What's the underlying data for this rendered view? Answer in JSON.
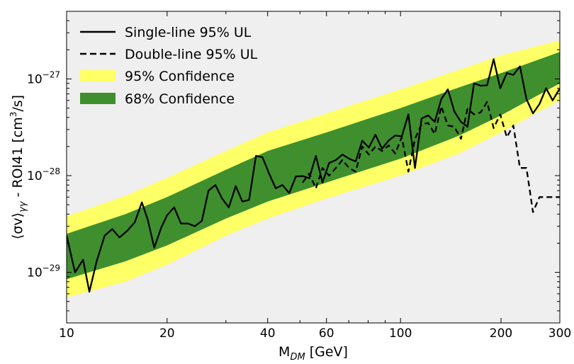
{
  "chart_data": {
    "type": "line",
    "xscale": "log",
    "yscale": "log",
    "xlim": [
      10,
      300
    ],
    "ylim": [
      3e-30,
      5e-27
    ],
    "xlabel_main": "M",
    "xlabel_sub": "DM",
    "xlabel_unit": " [GeV]",
    "ylabel_parts": {
      "prefix": "⟨σv⟩",
      "sub": "γγ",
      "mid": " - ROI41  [cm",
      "sup": "3",
      "suffix": "/s]"
    },
    "x_ticks": [
      {
        "value": 10,
        "label": "10"
      },
      {
        "value": 20,
        "label": "20"
      },
      {
        "value": 40,
        "label": "40"
      },
      {
        "value": 60,
        "label": "60"
      },
      {
        "value": 100,
        "label": "100"
      },
      {
        "value": 200,
        "label": "200"
      },
      {
        "value": 300,
        "label": "300"
      }
    ],
    "y_ticks": [
      {
        "value": 1e-29,
        "base": "10",
        "exp": "−29"
      },
      {
        "value": 1e-28,
        "base": "10",
        "exp": "−28"
      },
      {
        "value": 1e-27,
        "base": "10",
        "exp": "−27"
      }
    ],
    "grid": false,
    "legend_position": "top-left",
    "colors": {
      "background": "#efefef",
      "band95": "#ffff66",
      "band68": "#3f8f2f",
      "line": "#000000"
    },
    "series": [
      {
        "name": "Single-line 95% UL",
        "style": "solid",
        "x": [
          10,
          10.6,
          11.2,
          11.7,
          12.3,
          13,
          13.7,
          14.4,
          15.2,
          16,
          16.8,
          17.5,
          18.3,
          19.2,
          20,
          21,
          22,
          23.1,
          24.2,
          25.4,
          26.6,
          27.9,
          29.2,
          30.6,
          32.1,
          33.6,
          35.2,
          36.9,
          38.6,
          40.4,
          42.3,
          44.3,
          46.4,
          48.6,
          50.9,
          53.3,
          55.8,
          58.4,
          61.1,
          64,
          67,
          70.1,
          73.4,
          76.8,
          80.4,
          84.1,
          88,
          92.1,
          96.4,
          100.9,
          105.6,
          110.5,
          115.6,
          121,
          126.6,
          132.5,
          138.6,
          145,
          151.7,
          158.7,
          166,
          173.7,
          181.7,
          190.1,
          198.9,
          208.1,
          217.7,
          227.8,
          238.3,
          249.3,
          260.8,
          272.9,
          285.5,
          300
        ],
        "y": [
          2.4e-29,
          1e-29,
          1.35e-29,
          6.3e-30,
          1.3e-29,
          2.4e-29,
          2.8e-29,
          2.3e-29,
          2.7e-29,
          3.3e-29,
          5.3e-29,
          3.5e-29,
          1.8e-29,
          2.9e-29,
          3.9e-29,
          4.7e-29,
          3.2e-29,
          3.2e-29,
          3e-29,
          3.4e-29,
          7e-29,
          8e-29,
          5.8e-29,
          4.7e-29,
          7.8e-29,
          5.4e-29,
          5.6e-29,
          1.6e-28,
          1.55e-28,
          1.05e-28,
          7.4e-29,
          8e-29,
          6.6e-29,
          9.8e-29,
          9.9e-29,
          9.4e-29,
          1.6e-28,
          8.5e-29,
          1.35e-28,
          1.45e-28,
          1.65e-28,
          1.5e-28,
          1.4e-28,
          2.3e-28,
          1.95e-28,
          2.65e-28,
          1.9e-28,
          2.3e-28,
          2.6e-28,
          2.55e-28,
          4.3e-28,
          1.2e-28,
          3.9e-28,
          4.2e-28,
          3.6e-28,
          6.2e-28,
          7.8e-28,
          4.6e-28,
          3.6e-28,
          3.2e-28,
          9e-28,
          8.5e-28,
          8.6e-28,
          1.6e-27,
          8e-28,
          1.15e-27,
          1.1e-27,
          1.35e-27,
          6.2e-28,
          4.4e-28,
          5.5e-28,
          8e-28,
          6e-28,
          8e-28
        ]
      },
      {
        "name": "Double-line 95% UL",
        "style": "dashed",
        "x": [
          50.9,
          53.3,
          55.8,
          58.4,
          61.1,
          64,
          67,
          70.1,
          73.4,
          76.8,
          80.4,
          84.1,
          88,
          92.1,
          96.4,
          100.9,
          105.6,
          110.5,
          115.6,
          121,
          126.6,
          132.5,
          138.6,
          145,
          151.7,
          158.7,
          166,
          173.7,
          181.7,
          190.1,
          198.9,
          208.1,
          217.7,
          227.8,
          238.3,
          249.3,
          260.8,
          272.9,
          285.5,
          300
        ],
        "y": [
          8.5e-29,
          1.05e-28,
          7.4e-29,
          1.2e-28,
          1e-28,
          1.2e-28,
          1.45e-28,
          1.2e-28,
          1.1e-28,
          2e-28,
          1.65e-28,
          2e-28,
          1.8e-28,
          2.05e-28,
          1.7e-28,
          2.5e-28,
          1.1e-28,
          2.4e-28,
          3.4e-28,
          3.5e-28,
          2.7e-28,
          5.2e-28,
          3.3e-28,
          3.2e-28,
          2.4e-28,
          4.9e-28,
          4.3e-28,
          4.5e-28,
          5.8e-28,
          3.1e-28,
          4.3e-28,
          2.5e-28,
          3.3e-28,
          1.2e-28,
          1.2e-28,
          4.2e-29,
          6e-29,
          6e-29,
          6e-29,
          6e-29
        ]
      }
    ],
    "bands": [
      {
        "name": "95% Confidence",
        "x": [
          10,
          15,
          20,
          30,
          40,
          60,
          100,
          150,
          200,
          300
        ],
        "lower": [
          5.5e-30,
          8e-30,
          1.2e-29,
          2.4e-29,
          3.6e-29,
          5.8e-29,
          1e-28,
          1.7e-28,
          2.8e-28,
          6e-28
        ],
        "upper": [
          3.8e-29,
          6.2e-29,
          9.5e-29,
          1.8e-28,
          2.8e-28,
          4.4e-28,
          7.8e-28,
          1.25e-27,
          1.75e-27,
          2.5e-27
        ]
      },
      {
        "name": "68% Confidence",
        "x": [
          10,
          15,
          20,
          30,
          40,
          60,
          100,
          150,
          200,
          300
        ],
        "lower": [
          8.5e-30,
          1.3e-29,
          1.9e-29,
          3.6e-29,
          5.4e-29,
          8.5e-29,
          1.5e-28,
          2.6e-28,
          4.2e-28,
          9e-28
        ],
        "upper": [
          2.5e-29,
          4e-29,
          6e-29,
          1.15e-28,
          1.8e-28,
          2.8e-28,
          5e-28,
          8.2e-28,
          1.15e-27,
          1.9e-27
        ]
      }
    ]
  },
  "legend": {
    "items": [
      {
        "label": "Single-line 95% UL",
        "kind": "solid"
      },
      {
        "label": "Double-line 95% UL",
        "kind": "dashed"
      },
      {
        "label": "95% Confidence",
        "kind": "band95"
      },
      {
        "label": "68% Confidence",
        "kind": "band68"
      }
    ]
  }
}
